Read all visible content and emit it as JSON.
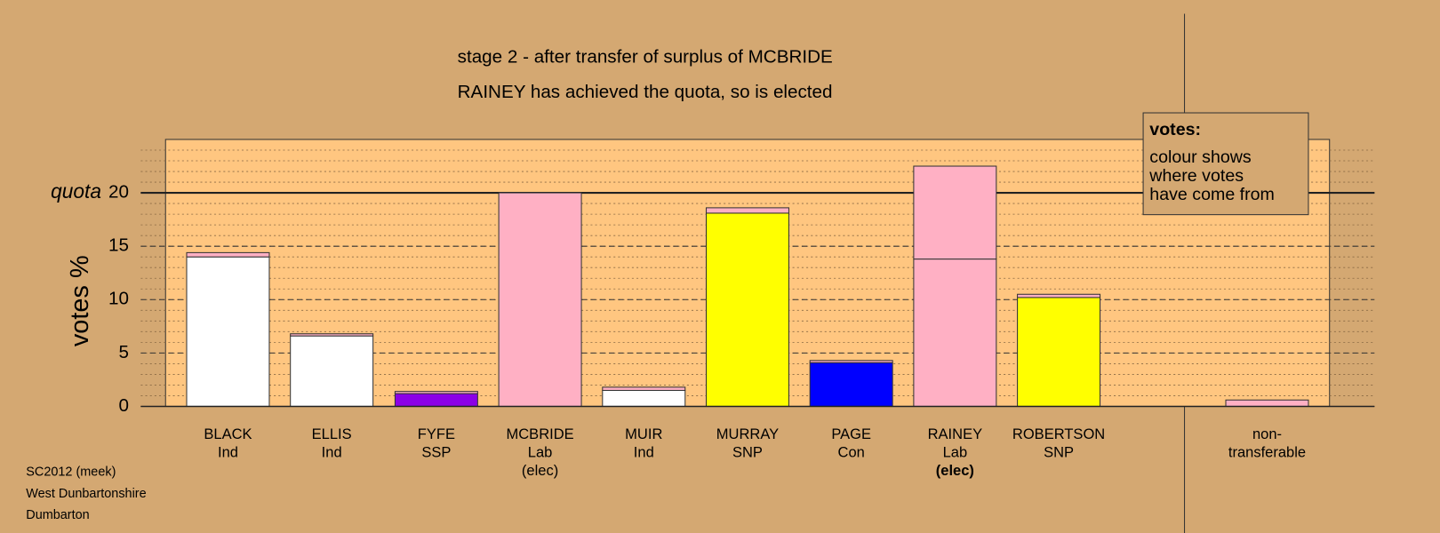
{
  "chart_data": {
    "type": "stacked_bar",
    "title": "stage 2 - after transfer of surplus of MCBRIDE",
    "subtitle": "RAINEY has achieved the quota, so is elected",
    "y_label": "votes %",
    "quota": 20,
    "quota_label": "quota",
    "categories": [
      [
        "BLACK",
        "Ind"
      ],
      [
        "ELLIS",
        "Ind"
      ],
      [
        "FYFE",
        "SSP"
      ],
      [
        "MCBRIDE",
        "Lab",
        "(elec)"
      ],
      [
        "MUIR",
        "Ind"
      ],
      [
        "MURRAY",
        "SNP"
      ],
      [
        "PAGE",
        "Con"
      ],
      [
        "RAINEY",
        "Lab",
        "(elec)"
      ],
      [
        "ROBERTSON",
        "SNP"
      ],
      [
        "non-",
        "transferable"
      ]
    ],
    "highlight_category": 7,
    "series": [
      {
        "values": [
          14.0,
          6.6,
          1.2,
          20.0,
          1.5,
          18.1,
          4.1,
          13.8,
          10.2,
          null
        ],
        "colors": [
          "#ffffff",
          "#ffffff",
          "#8c00e6",
          "#ffb0c4",
          "#ffffff",
          "#ffff00",
          "#0000ff",
          "#ffb0c4",
          "#ffff00",
          null
        ]
      },
      {
        "values": [
          0.4,
          0.2,
          0.2,
          0,
          0.3,
          0.5,
          0.2,
          8.7,
          0.3,
          0.6
        ],
        "color": "#ffb0c4"
      }
    ],
    "ylim": [
      0,
      25
    ],
    "yticks": [
      0,
      5,
      10,
      15,
      20
    ],
    "minor_step": 1,
    "legend": {
      "title": "votes:",
      "lines": [
        "colour shows",
        "where votes",
        "have come from"
      ]
    },
    "footer": [
      "SC2012 (meek)",
      "West Dunbartonshire",
      "Dumbarton"
    ]
  }
}
